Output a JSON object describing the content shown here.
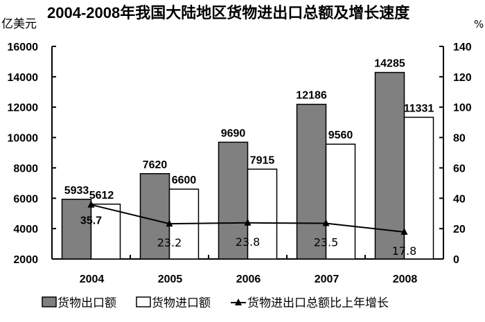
{
  "chart_data": {
    "type": "bar",
    "title": "2004-2008年我国大陆地区货物进出口总额及增长速度",
    "ylabel_left": "亿美元",
    "ylabel_right": "%",
    "categories": [
      "2004",
      "2005",
      "2006",
      "2007",
      "2008"
    ],
    "ylim_left": [
      2000,
      16000
    ],
    "yticks_left": [
      "2000",
      "4000",
      "6000",
      "8000",
      "10000",
      "12000",
      "14000",
      "16000"
    ],
    "ylim_right": [
      0,
      140
    ],
    "yticks_right": [
      "0",
      "20",
      "40",
      "60",
      "80",
      "100",
      "120",
      "140"
    ],
    "grid": false,
    "legend_position": "bottom",
    "series": [
      {
        "name": "货物出口额",
        "type": "bar",
        "axis": "left",
        "color": "#808080",
        "values": [
          5933,
          7620,
          9690,
          12186,
          14285
        ],
        "labels": [
          "5933",
          "7620",
          "9690",
          "12186",
          "14285"
        ]
      },
      {
        "name": "货物进口额",
        "type": "bar",
        "axis": "left",
        "color": "#ffffff",
        "values": [
          5612,
          6600,
          7915,
          9560,
          11331
        ],
        "labels": [
          "5612",
          "6600",
          "7915",
          "9560",
          "11331"
        ]
      },
      {
        "name": "货物进出口总额比上年增长",
        "type": "line",
        "axis": "right",
        "color": "#000000",
        "marker": "triangle",
        "values": [
          35.7,
          23.2,
          23.8,
          23.5,
          17.8
        ],
        "labels": [
          "35.7",
          "23.2",
          "23.8",
          "23.5",
          "17.8"
        ]
      }
    ]
  }
}
